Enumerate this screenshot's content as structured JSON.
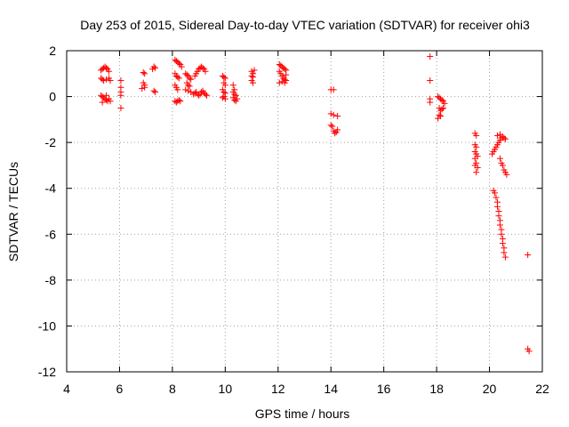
{
  "chart_data": {
    "type": "scatter",
    "title": "Day 253 of 2015, Sidereal Day-to-day VTEC variation (SDTVAR) for receiver ohi3",
    "xlabel": "GPS time / hours",
    "ylabel": "SDTVAR / TECUs",
    "xlim": [
      4,
      22
    ],
    "ylim": [
      -12,
      2
    ],
    "xticks": [
      4,
      6,
      8,
      10,
      12,
      14,
      16,
      18,
      20,
      22
    ],
    "yticks": [
      2,
      0,
      -2,
      -4,
      -6,
      -8,
      -10,
      -12
    ],
    "xtick_labels": [
      "4",
      "6",
      "8",
      "10",
      "12",
      "14",
      "16",
      "18",
      "20",
      "22"
    ],
    "ytick_labels": [
      "2",
      "0",
      "-2",
      "-4",
      "-6",
      "-8",
      "-10",
      "-12"
    ],
    "grid": true,
    "marker": "+",
    "color": "#ff0000",
    "series": [
      {
        "name": "ohi3",
        "points": [
          [
            5.3,
            1.15
          ],
          [
            5.35,
            1.2
          ],
          [
            5.4,
            1.25
          ],
          [
            5.45,
            1.3
          ],
          [
            5.5,
            1.25
          ],
          [
            5.55,
            1.2
          ],
          [
            5.6,
            1.1
          ],
          [
            5.3,
            0.8
          ],
          [
            5.35,
            0.75
          ],
          [
            5.4,
            0.7
          ],
          [
            5.5,
            0.75
          ],
          [
            5.6,
            0.8
          ],
          [
            5.65,
            0.7
          ],
          [
            5.3,
            0.05
          ],
          [
            5.35,
            0.0
          ],
          [
            5.4,
            -0.05
          ],
          [
            5.45,
            -0.1
          ],
          [
            5.5,
            -0.15
          ],
          [
            5.55,
            -0.2
          ],
          [
            5.6,
            -0.1
          ],
          [
            5.65,
            -0.2
          ],
          [
            5.35,
            -0.25
          ],
          [
            5.5,
            0.05
          ],
          [
            6.05,
            0.7
          ],
          [
            6.05,
            0.4
          ],
          [
            6.05,
            0.2
          ],
          [
            6.05,
            0.05
          ],
          [
            6.05,
            -0.5
          ],
          [
            6.9,
            1.05
          ],
          [
            6.95,
            1.0
          ],
          [
            6.9,
            0.6
          ],
          [
            6.95,
            0.5
          ],
          [
            6.85,
            0.35
          ],
          [
            6.95,
            0.4
          ],
          [
            7.25,
            1.2
          ],
          [
            7.3,
            1.3
          ],
          [
            7.35,
            1.25
          ],
          [
            7.3,
            0.25
          ],
          [
            7.35,
            0.2
          ],
          [
            8.1,
            1.6
          ],
          [
            8.15,
            1.55
          ],
          [
            8.2,
            1.5
          ],
          [
            8.25,
            1.45
          ],
          [
            8.3,
            1.4
          ],
          [
            8.35,
            1.3
          ],
          [
            8.1,
            1.0
          ],
          [
            8.15,
            0.9
          ],
          [
            8.2,
            0.85
          ],
          [
            8.25,
            0.8
          ],
          [
            8.1,
            0.5
          ],
          [
            8.15,
            0.4
          ],
          [
            8.2,
            0.3
          ],
          [
            8.1,
            -0.2
          ],
          [
            8.15,
            -0.25
          ],
          [
            8.2,
            -0.2
          ],
          [
            8.25,
            -0.15
          ],
          [
            8.3,
            -0.2
          ],
          [
            8.5,
            1.0
          ],
          [
            8.55,
            0.95
          ],
          [
            8.6,
            0.9
          ],
          [
            8.65,
            0.8
          ],
          [
            8.7,
            0.75
          ],
          [
            8.55,
            0.6
          ],
          [
            8.6,
            0.5
          ],
          [
            8.65,
            0.45
          ],
          [
            8.5,
            0.3
          ],
          [
            8.6,
            0.25
          ],
          [
            8.7,
            0.2
          ],
          [
            8.8,
            0.1
          ],
          [
            8.85,
            0.15
          ],
          [
            8.9,
            0.2
          ],
          [
            8.95,
            0.1
          ],
          [
            9.0,
            0.05
          ],
          [
            9.05,
            0.1
          ],
          [
            9.1,
            0.2
          ],
          [
            9.15,
            0.25
          ],
          [
            9.2,
            0.15
          ],
          [
            9.25,
            0.1
          ],
          [
            9.3,
            0.05
          ],
          [
            8.85,
            0.9
          ],
          [
            8.9,
            1.0
          ],
          [
            8.95,
            1.1
          ],
          [
            9.0,
            1.2
          ],
          [
            9.05,
            1.25
          ],
          [
            9.1,
            1.3
          ],
          [
            9.15,
            1.25
          ],
          [
            9.2,
            1.2
          ],
          [
            9.25,
            1.1
          ],
          [
            9.9,
            0.9
          ],
          [
            9.95,
            0.85
          ],
          [
            10.0,
            0.8
          ],
          [
            9.95,
            0.6
          ],
          [
            10.0,
            0.5
          ],
          [
            9.9,
            0.3
          ],
          [
            9.95,
            0.2
          ],
          [
            10.0,
            0.15
          ],
          [
            9.9,
            -0.05
          ],
          [
            9.95,
            0.0
          ],
          [
            10.0,
            -0.1
          ],
          [
            10.3,
            0.5
          ],
          [
            10.35,
            0.3
          ],
          [
            10.3,
            0.2
          ],
          [
            10.35,
            0.1
          ],
          [
            10.4,
            0.05
          ],
          [
            10.3,
            -0.05
          ],
          [
            10.35,
            -0.15
          ],
          [
            10.4,
            -0.2
          ],
          [
            10.45,
            -0.1
          ],
          [
            11.0,
            1.1
          ],
          [
            11.05,
            1.0
          ],
          [
            11.0,
            0.9
          ],
          [
            11.05,
            0.85
          ],
          [
            11.0,
            0.7
          ],
          [
            11.05,
            0.6
          ],
          [
            11.1,
            1.15
          ],
          [
            12.05,
            1.4
          ],
          [
            12.1,
            1.35
          ],
          [
            12.15,
            1.3
          ],
          [
            12.2,
            1.25
          ],
          [
            12.25,
            1.2
          ],
          [
            12.3,
            1.15
          ],
          [
            12.05,
            1.1
          ],
          [
            12.1,
            1.0
          ],
          [
            12.15,
            0.9
          ],
          [
            12.2,
            0.8
          ],
          [
            12.25,
            0.75
          ],
          [
            12.3,
            0.7
          ],
          [
            12.05,
            0.6
          ],
          [
            12.15,
            0.65
          ],
          [
            12.25,
            0.6
          ],
          [
            12.3,
            0.95
          ],
          [
            14.0,
            0.3
          ],
          [
            14.1,
            0.3
          ],
          [
            14.0,
            -0.75
          ],
          [
            14.1,
            -0.8
          ],
          [
            14.25,
            -0.85
          ],
          [
            14.0,
            -1.25
          ],
          [
            14.05,
            -1.3
          ],
          [
            14.1,
            -1.5
          ],
          [
            14.2,
            -1.55
          ],
          [
            14.25,
            -1.45
          ],
          [
            14.15,
            -1.6
          ],
          [
            17.75,
            1.75
          ],
          [
            17.75,
            0.7
          ],
          [
            17.75,
            -0.1
          ],
          [
            17.75,
            -0.25
          ],
          [
            18.05,
            0.0
          ],
          [
            18.1,
            -0.05
          ],
          [
            18.15,
            -0.1
          ],
          [
            18.2,
            -0.15
          ],
          [
            18.25,
            -0.2
          ],
          [
            18.3,
            -0.3
          ],
          [
            18.1,
            -0.5
          ],
          [
            18.15,
            -0.6
          ],
          [
            18.2,
            -0.55
          ],
          [
            18.25,
            -0.5
          ],
          [
            18.1,
            -0.8
          ],
          [
            18.15,
            -0.85
          ],
          [
            18.05,
            -0.95
          ],
          [
            19.45,
            -1.6
          ],
          [
            19.5,
            -1.7
          ],
          [
            19.45,
            -2.1
          ],
          [
            19.5,
            -2.2
          ],
          [
            19.45,
            -2.4
          ],
          [
            19.5,
            -2.5
          ],
          [
            19.45,
            -2.7
          ],
          [
            19.5,
            -2.9
          ],
          [
            19.45,
            -3.0
          ],
          [
            19.55,
            -3.1
          ],
          [
            19.5,
            -3.3
          ],
          [
            19.55,
            -2.6
          ],
          [
            20.1,
            -2.5
          ],
          [
            20.15,
            -2.4
          ],
          [
            20.2,
            -2.3
          ],
          [
            20.25,
            -2.2
          ],
          [
            20.3,
            -2.1
          ],
          [
            20.35,
            -2.0
          ],
          [
            20.4,
            -1.9
          ],
          [
            20.45,
            -1.8
          ],
          [
            20.5,
            -1.75
          ],
          [
            20.55,
            -1.8
          ],
          [
            20.6,
            -1.85
          ],
          [
            20.3,
            -1.7
          ],
          [
            20.4,
            -1.65
          ],
          [
            20.4,
            -2.7
          ],
          [
            20.45,
            -2.9
          ],
          [
            20.5,
            -3.0
          ],
          [
            20.55,
            -3.2
          ],
          [
            20.6,
            -3.3
          ],
          [
            20.65,
            -3.4
          ],
          [
            20.15,
            -4.1
          ],
          [
            20.2,
            -4.2
          ],
          [
            20.25,
            -4.4
          ],
          [
            20.3,
            -4.6
          ],
          [
            20.3,
            -4.8
          ],
          [
            20.35,
            -5.0
          ],
          [
            20.35,
            -5.2
          ],
          [
            20.4,
            -5.4
          ],
          [
            20.4,
            -5.6
          ],
          [
            20.45,
            -5.8
          ],
          [
            20.45,
            -6.0
          ],
          [
            20.5,
            -6.2
          ],
          [
            20.5,
            -6.4
          ],
          [
            20.55,
            -6.6
          ],
          [
            20.55,
            -6.8
          ],
          [
            20.6,
            -7.0
          ],
          [
            21.45,
            -6.9
          ],
          [
            21.45,
            -11.0
          ],
          [
            21.5,
            -11.1
          ]
        ]
      }
    ]
  }
}
